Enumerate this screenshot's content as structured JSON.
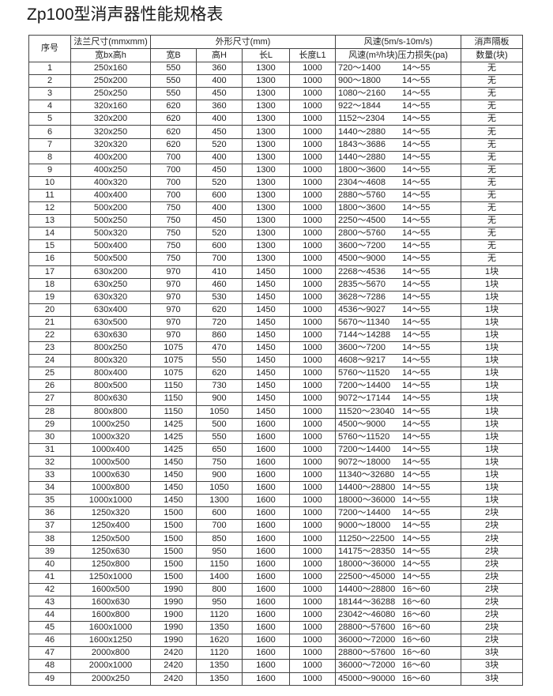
{
  "title": "Zp100型消声器性能规格表",
  "header": {
    "seq": "序号",
    "flange": "法兰尺寸(mmxmm)",
    "flange_sub": "宽bx高h",
    "outer": "外形尺寸(mm)",
    "width_B": "宽B",
    "height_H": "高H",
    "length_L": "长L",
    "length_L1": "长度L1",
    "airspeed": "风速(5m/s-10m/s)",
    "airspeed_sub": "风速(m³/h块)压力损失(pa)",
    "baffle": "消声隔板",
    "baffle_sub": "数量(块)"
  },
  "rows": [
    [
      "1",
      "250x160",
      "550",
      "360",
      "1300",
      "1000",
      "720～1400",
      "14～55",
      "无"
    ],
    [
      "2",
      "250x200",
      "550",
      "400",
      "1300",
      "1000",
      "900～1800",
      "14～55",
      "无"
    ],
    [
      "3",
      "250x250",
      "550",
      "450",
      "1300",
      "1000",
      "1080～2160",
      "14～55",
      "无"
    ],
    [
      "4",
      "320x160",
      "620",
      "360",
      "1300",
      "1000",
      "922～1844",
      "14～55",
      "无"
    ],
    [
      "5",
      "320x200",
      "620",
      "400",
      "1300",
      "1000",
      "1152～2304",
      "14～55",
      "无"
    ],
    [
      "6",
      "320x250",
      "620",
      "450",
      "1300",
      "1000",
      "1440～2880",
      "14～55",
      "无"
    ],
    [
      "7",
      "320x320",
      "620",
      "520",
      "1300",
      "1000",
      "1843～3686",
      "14～55",
      "无"
    ],
    [
      "8",
      "400x200",
      "700",
      "400",
      "1300",
      "1000",
      "1440～2880",
      "14～55",
      "无"
    ],
    [
      "9",
      "400x250",
      "700",
      "450",
      "1300",
      "1000",
      "1800～3600",
      "14～55",
      "无"
    ],
    [
      "10",
      "400x320",
      "700",
      "520",
      "1300",
      "1000",
      "2304～4608",
      "14～55",
      "无"
    ],
    [
      "11",
      "400x400",
      "700",
      "600",
      "1300",
      "1000",
      "2880～5760",
      "14～55",
      "无"
    ],
    [
      "12",
      "500x200",
      "750",
      "400",
      "1300",
      "1000",
      "1800～3600",
      "14～55",
      "无"
    ],
    [
      "13",
      "500x250",
      "750",
      "450",
      "1300",
      "1000",
      "2250～4500",
      "14～55",
      "无"
    ],
    [
      "14",
      "500x320",
      "750",
      "520",
      "1300",
      "1000",
      "2800～5760",
      "14～55",
      "无"
    ],
    [
      "15",
      "500x400",
      "750",
      "600",
      "1300",
      "1000",
      "3600～7200",
      "14～55",
      "无"
    ],
    [
      "16",
      "500x500",
      "750",
      "700",
      "1300",
      "1000",
      "4500～9000",
      "14～55",
      "无"
    ],
    [
      "17",
      "630x200",
      "970",
      "410",
      "1450",
      "1000",
      "2268～4536",
      "14～55",
      "1块"
    ],
    [
      "18",
      "630x250",
      "970",
      "460",
      "1450",
      "1000",
      "2835～5670",
      "14～55",
      "1块"
    ],
    [
      "19",
      "630x320",
      "970",
      "530",
      "1450",
      "1000",
      "3628～7286",
      "14～55",
      "1块"
    ],
    [
      "20",
      "630x400",
      "970",
      "620",
      "1450",
      "1000",
      "4536～9027",
      "14～55",
      "1块"
    ],
    [
      "21",
      "630x500",
      "970",
      "720",
      "1450",
      "1000",
      "5670～11340",
      "14～55",
      "1块"
    ],
    [
      "22",
      "630x630",
      "970",
      "860",
      "1450",
      "1000",
      "7144～14288",
      "14～55",
      "1块"
    ],
    [
      "23",
      "800x250",
      "1075",
      "470",
      "1450",
      "1000",
      "3600～7200",
      "14～55",
      "1块"
    ],
    [
      "24",
      "800x320",
      "1075",
      "550",
      "1450",
      "1000",
      "4608～9217",
      "14～55",
      "1块"
    ],
    [
      "25",
      "800x400",
      "1075",
      "620",
      "1450",
      "1000",
      "5760～11520",
      "14～55",
      "1块"
    ],
    [
      "26",
      "800x500",
      "1150",
      "730",
      "1450",
      "1000",
      "7200～14400",
      "14～55",
      "1块"
    ],
    [
      "27",
      "800x630",
      "1150",
      "900",
      "1450",
      "1000",
      "9072～17144",
      "14～55",
      "1块"
    ],
    [
      "28",
      "800x800",
      "1150",
      "1050",
      "1450",
      "1000",
      "11520～23040",
      "14～55",
      "1块"
    ],
    [
      "29",
      "1000x250",
      "1425",
      "500",
      "1600",
      "1000",
      "4500～9000",
      "14～55",
      "1块"
    ],
    [
      "30",
      "1000x320",
      "1425",
      "550",
      "1600",
      "1000",
      "5760～11520",
      "14～55",
      "1块"
    ],
    [
      "31",
      "1000x400",
      "1425",
      "650",
      "1600",
      "1000",
      "7200～14400",
      "14～55",
      "1块"
    ],
    [
      "32",
      "1000x500",
      "1450",
      "750",
      "1600",
      "1000",
      "9072～18000",
      "14～55",
      "1块"
    ],
    [
      "33",
      "1000x630",
      "1450",
      "900",
      "1600",
      "1000",
      "11340～32680",
      "14～55",
      "1块"
    ],
    [
      "34",
      "1000x800",
      "1450",
      "1050",
      "1600",
      "1000",
      "14400～28800",
      "14～55",
      "1块"
    ],
    [
      "35",
      "1000x1000",
      "1450",
      "1300",
      "1600",
      "1000",
      "18000～36000",
      "14～55",
      "1块"
    ],
    [
      "36",
      "1250x320",
      "1500",
      "600",
      "1600",
      "1000",
      "7200～14400",
      "14～55",
      "2块"
    ],
    [
      "37",
      "1250x400",
      "1500",
      "700",
      "1600",
      "1000",
      "9000～18000",
      "14～55",
      "2块"
    ],
    [
      "38",
      "1250x500",
      "1500",
      "850",
      "1600",
      "1000",
      "11250～22500",
      "14～55",
      "2块"
    ],
    [
      "39",
      "1250x630",
      "1500",
      "950",
      "1600",
      "1000",
      "14175～28350",
      "14～55",
      "2块"
    ],
    [
      "40",
      "1250x800",
      "1500",
      "1150",
      "1600",
      "1000",
      "18000～36000",
      "14～55",
      "2块"
    ],
    [
      "41",
      "1250x1000",
      "1500",
      "1400",
      "1600",
      "1000",
      "22500～45000",
      "14～55",
      "2块"
    ],
    [
      "42",
      "1600x500",
      "1990",
      "800",
      "1600",
      "1000",
      "14400～28800",
      "16～60",
      "2块"
    ],
    [
      "43",
      "1600x630",
      "1990",
      "950",
      "1600",
      "1000",
      "18144～36288",
      "16～60",
      "2块"
    ],
    [
      "44",
      "1600x800",
      "1900",
      "1120",
      "1600",
      "1000",
      "23042～46080",
      "16～60",
      "2块"
    ],
    [
      "45",
      "1600x1000",
      "1990",
      "1350",
      "1600",
      "1000",
      "28800～57600",
      "16～60",
      "2块"
    ],
    [
      "46",
      "1600x1250",
      "1990",
      "1620",
      "1600",
      "1000",
      "36000～72000",
      "16～60",
      "2块"
    ],
    [
      "47",
      "2000x800",
      "2420",
      "1120",
      "1600",
      "1000",
      "28800～57600",
      "16～60",
      "3块"
    ],
    [
      "48",
      "2000x1000",
      "2420",
      "1350",
      "1600",
      "1000",
      "36000～72000",
      "16～60",
      "3块"
    ],
    [
      "49",
      "2000x250",
      "2420",
      "1350",
      "1600",
      "1000",
      "45000～90000",
      "16～60",
      "3块"
    ]
  ]
}
